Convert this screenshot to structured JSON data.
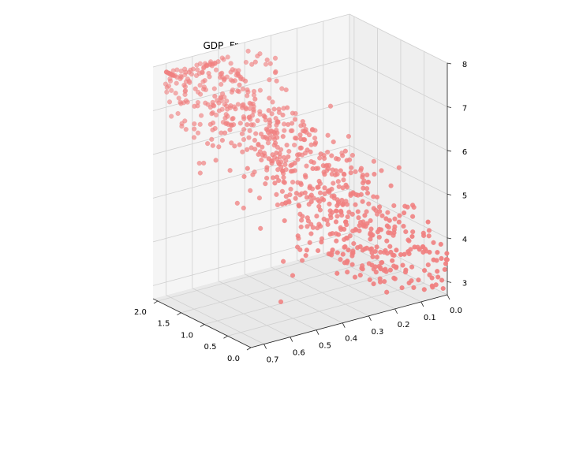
{
  "chart_data": {
    "type": "scatter",
    "projection": "3d",
    "title": "GDP, Freedom to Happiness Score",
    "xlabel": "",
    "ylabel": "",
    "zlabel": "",
    "grid": true,
    "marker_color": "#f08080",
    "axis_x": {
      "ticks": [
        2.0,
        1.5,
        1.0,
        0.5,
        0.0
      ],
      "tick_labels": [
        "2.0",
        "1.5",
        "1.0",
        "0.5",
        "0.0"
      ],
      "range": [
        0.0,
        2.1
      ]
    },
    "axis_y": {
      "ticks": [
        0.7,
        0.6,
        0.5,
        0.4,
        0.3,
        0.2,
        0.1,
        0.0
      ],
      "tick_labels": [
        "0.7",
        "0.6",
        "0.5",
        "0.4",
        "0.3",
        "0.2",
        "0.1",
        "0.0"
      ],
      "range": [
        0.0,
        0.75
      ]
    },
    "axis_z": {
      "ticks": [
        3,
        4,
        5,
        6,
        7,
        8
      ],
      "tick_labels": [
        "3",
        "4",
        "5",
        "6",
        "7",
        "8"
      ],
      "range": [
        2.7,
        8.0
      ]
    },
    "points_summary": "approx 780 points; happiness score rises with GDP and freedom",
    "sample_points": [
      {
        "gdp": 1.9,
        "freedom": 0.62,
        "score": 7.7
      },
      {
        "gdp": 1.6,
        "freedom": 0.58,
        "score": 7.3
      },
      {
        "gdp": 1.3,
        "freedom": 0.5,
        "score": 6.5
      },
      {
        "gdp": 1.0,
        "freedom": 0.42,
        "score": 5.8
      },
      {
        "gdp": 0.8,
        "freedom": 0.35,
        "score": 5.3
      },
      {
        "gdp": 0.5,
        "freedom": 0.25,
        "score": 4.6
      },
      {
        "gdp": 0.3,
        "freedom": 0.15,
        "score": 4.2
      },
      {
        "gdp": 0.1,
        "freedom": 0.05,
        "score": 3.7
      },
      {
        "gdp": 0.2,
        "freedom": 0.6,
        "score": 3.4
      },
      {
        "gdp": 1.7,
        "freedom": 0.1,
        "score": 5.2
      }
    ]
  }
}
